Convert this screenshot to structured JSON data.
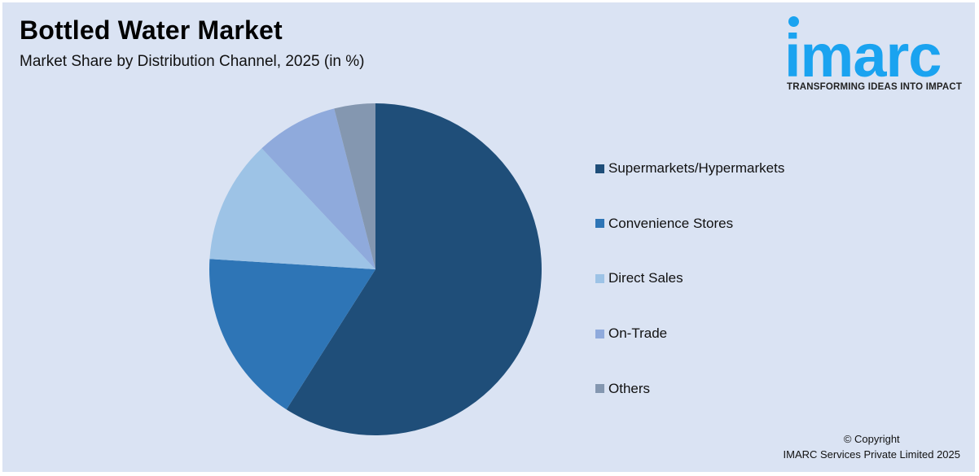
{
  "header": {
    "title": "Bottled Water Market",
    "subtitle": "Market Share by Distribution Channel, 2025 (in %)"
  },
  "logo": {
    "wordmark": "imarc",
    "tagline": "TRANSFORMING IDEAS INTO IMPACT",
    "color": "#1aa3f0"
  },
  "footer": {
    "line1": "© Copyright",
    "line2": "IMARC Services Private Limited 2025"
  },
  "colors": {
    "background": "#dae3f3"
  },
  "chart_data": {
    "type": "pie",
    "title": "Bottled Water Market",
    "subtitle": "Market Share by Distribution Channel, 2025 (in %)",
    "categories": [
      "Supermarkets/Hypermarkets",
      "Convenience Stores",
      "Direct Sales",
      "On-Trade",
      "Others"
    ],
    "values": [
      59,
      17,
      12,
      8,
      4
    ],
    "colors": [
      "#1f4e79",
      "#2e75b6",
      "#9dc3e6",
      "#8faadc",
      "#8497b0"
    ],
    "start_angle": "12 o'clock",
    "direction": "clockwise",
    "legend_position": "right",
    "data_labels": false
  }
}
